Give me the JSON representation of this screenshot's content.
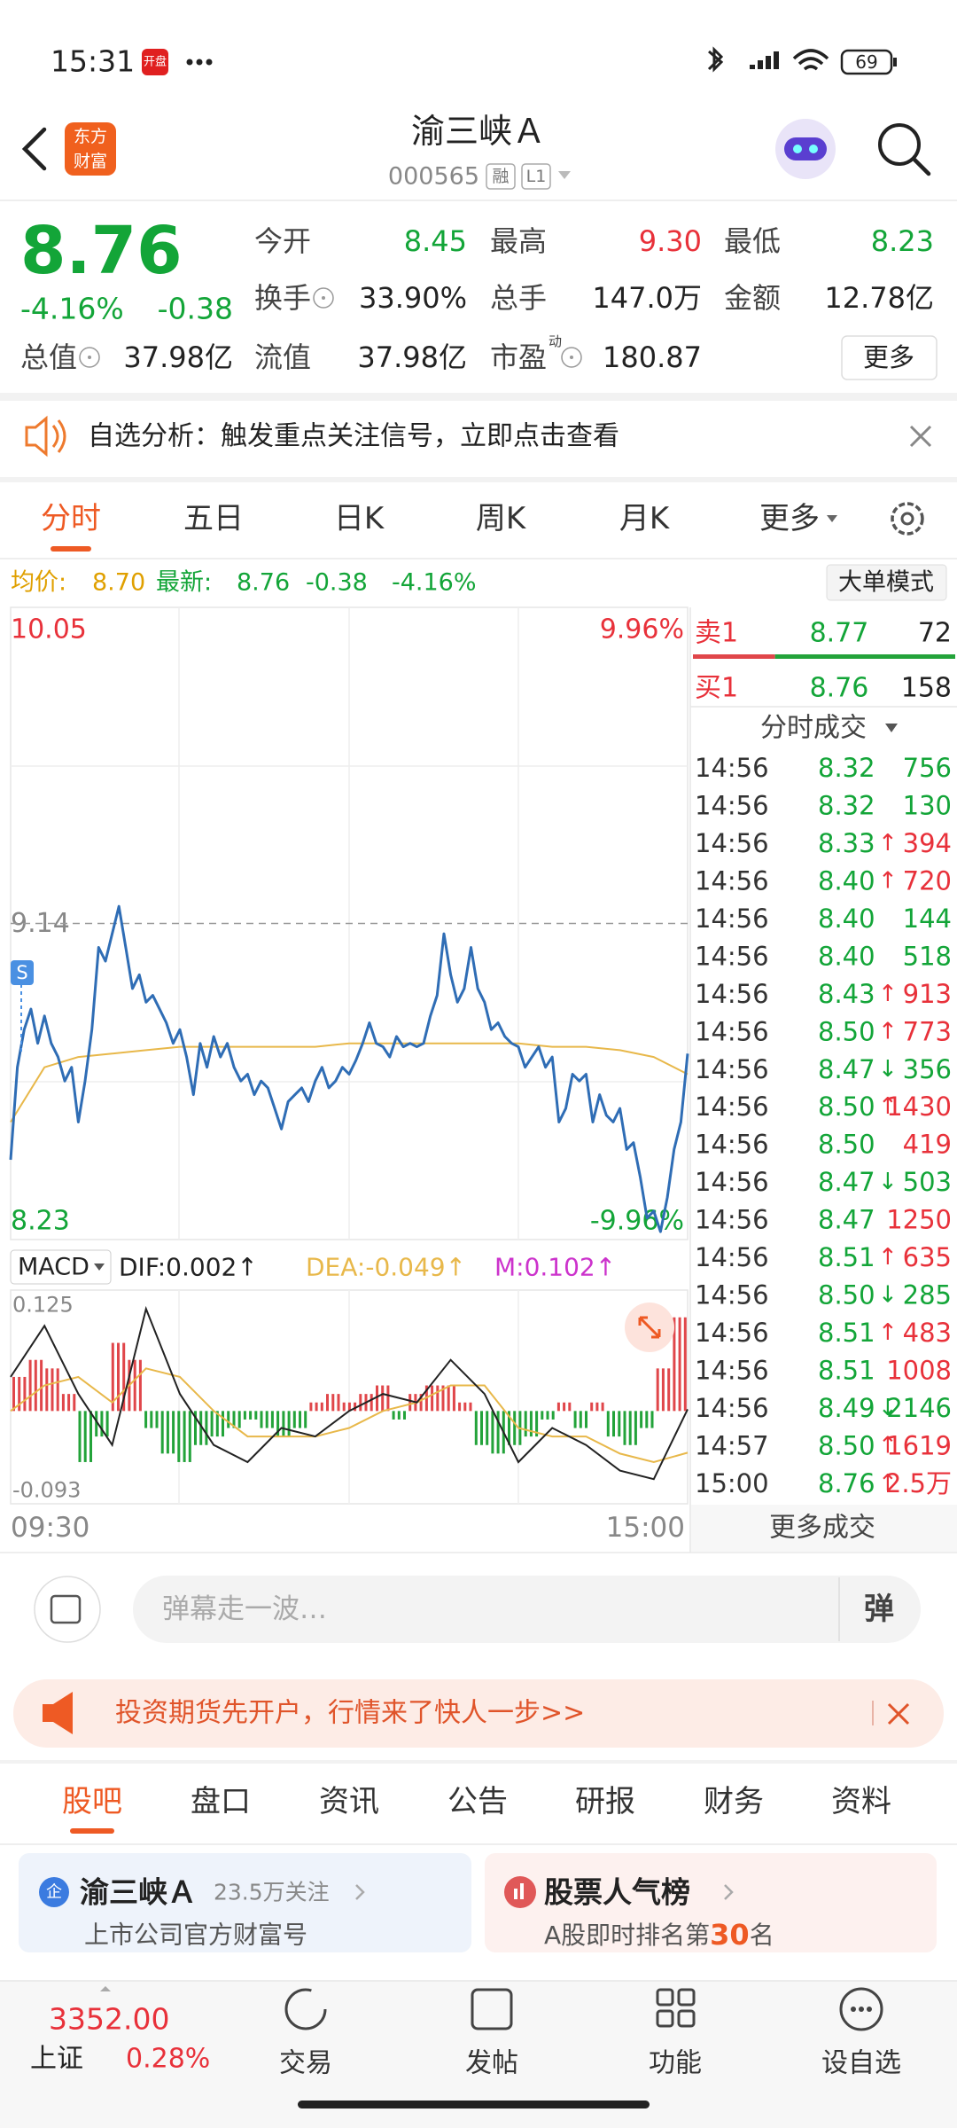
{
  "status_bar": {
    "time": "15:31",
    "badge": "开盘",
    "battery": "69"
  },
  "header": {
    "logo": [
      "东方",
      "财富"
    ],
    "title": "渝三峡Ａ",
    "code": "000565",
    "tags": [
      "融",
      "L1"
    ]
  },
  "quote": {
    "price": "8.76",
    "change_pct": "-4.16%",
    "change": "-0.38",
    "tone": "down",
    "stats": [
      {
        "label": "今开",
        "value": "8.45",
        "tone": "down"
      },
      {
        "label": "最高",
        "value": "9.30",
        "tone": "up"
      },
      {
        "label": "最低",
        "value": "8.23",
        "tone": "down"
      },
      {
        "label": "换手",
        "value": "33.90%",
        "tone": "flat",
        "info": true
      },
      {
        "label": "总手",
        "value": "147.0万",
        "tone": "flat"
      },
      {
        "label": "金额",
        "value": "12.78亿",
        "tone": "flat"
      },
      {
        "label": "总值",
        "value": "37.98亿",
        "tone": "flat",
        "info": true
      },
      {
        "label": "流值",
        "value": "37.98亿",
        "tone": "flat"
      },
      {
        "label": "市盈",
        "sup": "动",
        "value": "180.87",
        "tone": "flat",
        "info": true
      }
    ],
    "more": "更多"
  },
  "notice": "自选分析：触发重点关注信号，立即点击查看",
  "chart_tabs": {
    "items": [
      "分时",
      "五日",
      "日K",
      "周K",
      "月K",
      "更多"
    ],
    "active": 0
  },
  "info_line": {
    "avg_label": "均价:",
    "avg": "8.70",
    "latest_label": "最新:",
    "latest": "8.76",
    "change": "-0.38",
    "pct": "-4.16%",
    "mode": "大单模式"
  },
  "intraday": {
    "ylim": [
      8.23,
      10.05
    ],
    "yticks": [
      8.23,
      9.14,
      10.05
    ],
    "y2lim": [
      -9.96,
      9.96
    ],
    "y2ticks": [
      {
        "value": -9.96,
        "label": "-9.96%"
      },
      {
        "value": 9.96,
        "label": "9.96%"
      }
    ],
    "marker": "S",
    "time_labels": [
      "09:30",
      "15:00"
    ],
    "series": [
      {
        "color": "#2f6db5",
        "values": [
          8.45,
          8.72,
          8.83,
          8.89,
          8.79,
          8.87,
          8.79,
          8.75,
          8.68,
          8.72,
          8.56,
          8.68,
          8.83,
          9.07,
          9.03,
          9.11,
          9.19,
          9.07,
          8.95,
          8.99,
          8.91,
          8.93,
          8.89,
          8.85,
          8.79,
          8.83,
          8.75,
          8.64,
          8.79,
          8.72,
          8.81,
          8.75,
          8.79,
          8.72,
          8.68,
          8.7,
          8.64,
          8.68,
          8.66,
          8.6,
          8.54,
          8.62,
          8.64,
          8.66,
          8.62,
          8.68,
          8.72,
          8.66,
          8.68,
          8.72,
          8.7,
          8.74,
          8.79,
          8.85,
          8.79,
          8.78,
          8.75,
          8.81,
          8.78,
          8.79,
          8.78,
          8.79,
          8.87,
          8.93,
          9.11,
          8.99,
          8.91,
          8.95,
          9.07,
          8.95,
          8.91,
          8.83,
          8.85,
          8.81,
          8.79,
          8.78,
          8.72,
          8.75,
          8.78,
          8.72,
          8.75,
          8.56,
          8.6,
          8.7,
          8.68,
          8.7,
          8.56,
          8.64,
          8.58,
          8.56,
          8.6,
          8.48,
          8.5,
          8.4,
          8.28,
          8.3,
          8.24,
          8.34,
          8.48,
          8.56,
          8.76
        ]
      },
      {
        "color": "#e8b84a",
        "values": [
          8.56,
          8.72,
          8.75,
          8.76,
          8.77,
          8.78,
          8.78,
          8.78,
          8.78,
          8.78,
          8.79,
          8.79,
          8.79,
          8.79,
          8.79,
          8.79,
          8.78,
          8.78,
          8.77,
          8.75,
          8.7
        ]
      }
    ]
  },
  "macd": {
    "indicator": "MACD",
    "ylim": [
      -0.109,
      0.142
    ],
    "yticks": [
      -0.093,
      0.125
    ],
    "up_color": "#e0464a",
    "down_color": "#23a33a",
    "histogram": [
      0.04,
      0.06,
      0.05,
      0.02,
      -0.06,
      -0.03,
      0.08,
      0.06,
      -0.02,
      -0.05,
      -0.06,
      -0.04,
      -0.03,
      -0.02,
      -0.01,
      -0.02,
      -0.03,
      -0.02,
      0.01,
      0.02,
      0.01,
      0.02,
      0.03,
      -0.01,
      0.02,
      0.03,
      0.03,
      0.01,
      -0.04,
      -0.05,
      -0.04,
      -0.03,
      -0.01,
      0.01,
      -0.02,
      0.01,
      -0.03,
      -0.04,
      -0.02,
      0.05,
      0.11
    ],
    "dif": {
      "label": "DIF:0.002↑",
      "color": "#222222",
      "values": [
        0.04,
        0.1,
        0.02,
        -0.04,
        0.12,
        0.02,
        -0.04,
        -0.06,
        -0.02,
        -0.03,
        0.0,
        0.02,
        0.01,
        0.06,
        0.02,
        -0.06,
        -0.02,
        -0.04,
        -0.07,
        -0.08,
        0.002
      ]
    },
    "dea": {
      "label": "DEA:-0.049↑",
      "color": "#e8b84a",
      "values": [
        0.0,
        0.03,
        0.04,
        0.01,
        0.05,
        0.04,
        0.0,
        -0.03,
        -0.03,
        -0.03,
        -0.02,
        0.0,
        0.01,
        0.03,
        0.03,
        -0.02,
        -0.03,
        -0.03,
        -0.05,
        -0.06,
        -0.049
      ]
    },
    "m": {
      "label": "M:0.102↑",
      "color": "#cc33cc"
    }
  },
  "order_book": {
    "sell": {
      "label": "卖1",
      "price": "8.77",
      "volume": 72
    },
    "buy": {
      "label": "买1",
      "price": "8.76",
      "volume": 158
    }
  },
  "trades_header": "分时成交",
  "trades": [
    {
      "time": "14:56",
      "price": "8.32",
      "volume": "756",
      "side": "sell"
    },
    {
      "time": "14:56",
      "price": "8.32",
      "volume": "130",
      "side": "sell"
    },
    {
      "time": "14:56",
      "price": "8.33",
      "arrow": "↑",
      "volume": "394",
      "side": "buy"
    },
    {
      "time": "14:56",
      "price": "8.40",
      "arrow": "↑",
      "volume": "720",
      "side": "buy"
    },
    {
      "time": "14:56",
      "price": "8.40",
      "volume": "144",
      "side": "sell"
    },
    {
      "time": "14:56",
      "price": "8.40",
      "volume": "518",
      "side": "sell"
    },
    {
      "time": "14:56",
      "price": "8.43",
      "arrow": "↑",
      "volume": "913",
      "side": "buy"
    },
    {
      "time": "14:56",
      "price": "8.50",
      "arrow": "↑",
      "volume": "773",
      "side": "buy"
    },
    {
      "time": "14:56",
      "price": "8.47",
      "arrow": "↓",
      "volume": "356",
      "side": "sell"
    },
    {
      "time": "14:56",
      "price": "8.50",
      "arrow": "↑",
      "volume": "1430",
      "side": "buy"
    },
    {
      "time": "14:56",
      "price": "8.50",
      "volume": "419",
      "side": "buy"
    },
    {
      "time": "14:56",
      "price": "8.47",
      "arrow": "↓",
      "volume": "503",
      "side": "sell"
    },
    {
      "time": "14:56",
      "price": "8.47",
      "volume": "1250",
      "side": "buy"
    },
    {
      "time": "14:56",
      "price": "8.51",
      "arrow": "↑",
      "volume": "635",
      "side": "buy"
    },
    {
      "time": "14:56",
      "price": "8.50",
      "arrow": "↓",
      "volume": "285",
      "side": "sell"
    },
    {
      "time": "14:56",
      "price": "8.51",
      "arrow": "↑",
      "volume": "483",
      "side": "buy"
    },
    {
      "time": "14:56",
      "price": "8.51",
      "volume": "1008",
      "side": "buy"
    },
    {
      "time": "14:56",
      "price": "8.49",
      "arrow": "↓",
      "volume": "2146",
      "side": "sell"
    },
    {
      "time": "14:57",
      "price": "8.50",
      "arrow": "↑",
      "volume": "1619",
      "side": "buy"
    },
    {
      "time": "15:00",
      "price": "8.76",
      "arrow": "↑",
      "volume": "2.5万",
      "side": "buy"
    }
  ],
  "more_trades": "更多成交",
  "comment_bar": {
    "placeholder": "弹幕走一波…",
    "button": "弹"
  },
  "ad": "投资期货先开户，行情来了快人一步>>",
  "section_tabs": {
    "items": [
      "股吧",
      "盘口",
      "资讯",
      "公告",
      "研报",
      "财务",
      "资料"
    ],
    "active": 0
  },
  "cards": [
    {
      "badge": "企",
      "title": "渝三峡Ａ",
      "meta": "23.5万关注",
      "sub": "上市公司官方财富号"
    },
    {
      "title": "股票人气榜",
      "sub": [
        "A股即时排名第",
        "30",
        "名"
      ]
    }
  ],
  "bottom_nav": {
    "index": {
      "value": "3352.00",
      "name": "上证",
      "pct": "0.28%"
    },
    "items": [
      "交易",
      "发帖",
      "功能",
      "设自选"
    ]
  }
}
